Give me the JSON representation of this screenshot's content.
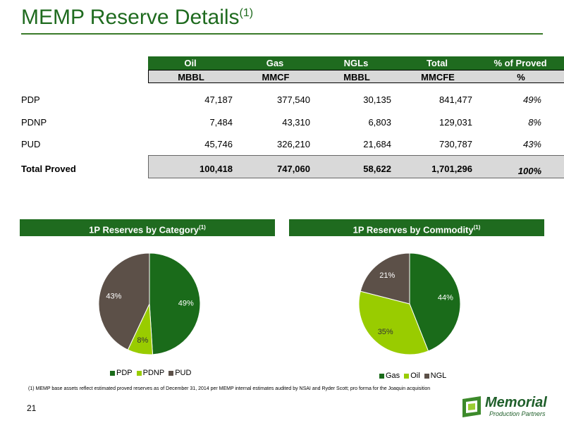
{
  "title": {
    "main": "MEMP Reserve Details",
    "sup": "(1)"
  },
  "table": {
    "headers": [
      "Oil",
      "Gas",
      "NGLs",
      "Total",
      "% of Proved"
    ],
    "units": [
      "MBBL",
      "MMCF",
      "MBBL",
      "MMCFE",
      "%"
    ],
    "rows": [
      {
        "label": "PDP",
        "values": [
          "47,187",
          "377,540",
          "30,135",
          "841,477",
          "49%"
        ]
      },
      {
        "label": "PDNP",
        "values": [
          "7,484",
          "43,310",
          "6,803",
          "129,031",
          "8%"
        ]
      },
      {
        "label": "PUD",
        "values": [
          "45,746",
          "326,210",
          "21,684",
          "730,787",
          "43%"
        ]
      }
    ],
    "total": {
      "label": "Total Proved",
      "values": [
        "100,418",
        "747,060",
        "58,622",
        "1,701,296",
        "100%"
      ]
    }
  },
  "chart_data": [
    {
      "type": "pie",
      "title": "1P Reserves by Category",
      "title_sup": "(1)",
      "categories": [
        "PDP",
        "PDNP",
        "PUD"
      ],
      "values": [
        49,
        8,
        43
      ],
      "labels": [
        "49%",
        "8%",
        "43%"
      ],
      "colors": [
        "#1a6b1a",
        "#99cc00",
        "#5c5048"
      ],
      "legend": "bottom"
    },
    {
      "type": "pie",
      "title": "1P Reserves by Commodity",
      "title_sup": "(1)",
      "categories": [
        "Gas",
        "Oil",
        "NGL"
      ],
      "values": [
        44,
        35,
        21
      ],
      "labels": [
        "44%",
        "35%",
        "21%"
      ],
      "colors": [
        "#1a6b1a",
        "#99cc00",
        "#5c5048"
      ],
      "legend": "bottom"
    }
  ],
  "footnote": "(1)      MEMP base assets reflect estimated proved reserves as of December 31, 2014 per MEMP internal estimates audited by NSAI and Ryder Scott; pro forma for the Joaquin acquisition",
  "page_number": "21",
  "logo": {
    "name": "Memorial",
    "tagline": "Production Partners"
  }
}
